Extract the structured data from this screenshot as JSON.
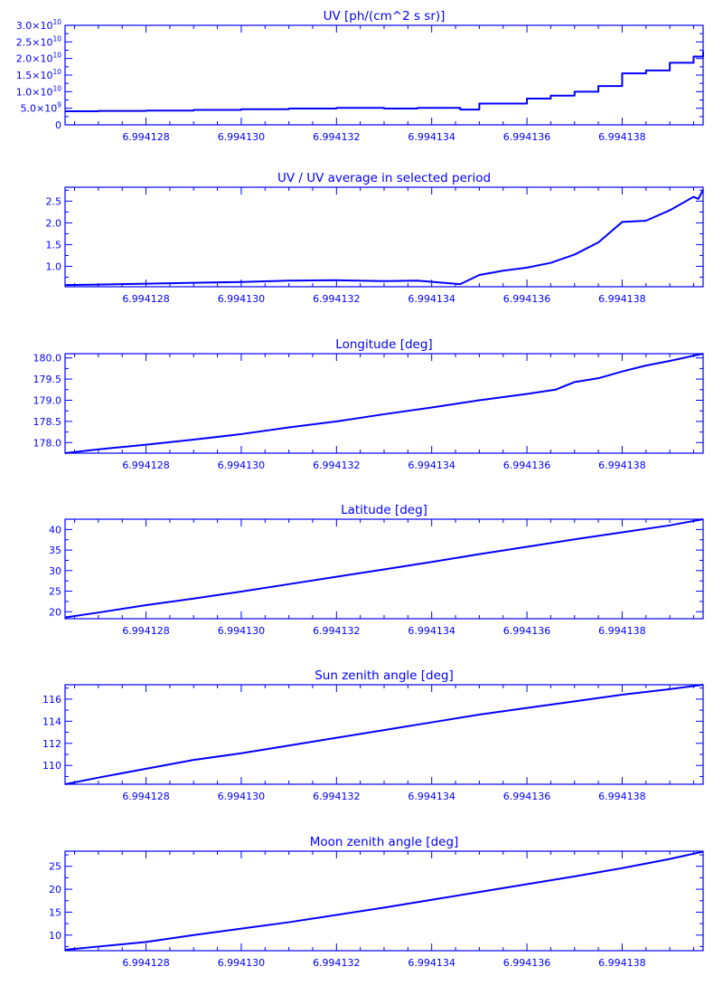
{
  "colors": {
    "foreground": "#0000ff",
    "background": "#ffffff"
  },
  "x_tick_labels": [
    "6.994128",
    "6.994130",
    "6.994132",
    "6.994134",
    "6.994136",
    "6.994138"
  ],
  "chart_data": [
    {
      "type": "line",
      "title": "UV [ph/(cm^2 s sr)]",
      "x": [
        6.9941263,
        6.994127,
        6.994128,
        6.994129,
        6.99413,
        6.994131,
        6.994132,
        6.994133,
        6.9941337,
        6.9941346,
        6.994135,
        6.994136,
        6.9941365,
        6.994137,
        6.9941375,
        6.994138,
        6.9941385,
        6.994139,
        6.9941395,
        6.9941397
      ],
      "values": [
        4100000000.0,
        4200000000.0,
        4300000000.0,
        4500000000.0,
        4700000000.0,
        4900000000.0,
        5100000000.0,
        4900000000.0,
        5100000000.0,
        4600000000.0,
        6400000000.0,
        7900000000.0,
        8800000000.0,
        10000000000.0,
        11700000000.0,
        15500000000.0,
        16400000000.0,
        18700000000.0,
        20600000000.0,
        22200000000.0
      ],
      "ylim": [
        0,
        30000000000.0
      ],
      "y_ticks": [
        0,
        5000000000.0,
        10000000000.0,
        15000000000.0,
        20000000000.0,
        25000000000.0,
        30000000000.0
      ],
      "y_tick_labels": [
        {
          "mant": "0",
          "exp": ""
        },
        {
          "mant": "5.0×10",
          "exp": "9"
        },
        {
          "mant": "1.0×10",
          "exp": "10"
        },
        {
          "mant": "1.5×10",
          "exp": "10"
        },
        {
          "mant": "2.0×10",
          "exp": "10"
        },
        {
          "mant": "2.5×10",
          "exp": "10"
        },
        {
          "mant": "3.0×10",
          "exp": "10"
        }
      ],
      "step": true
    },
    {
      "type": "line",
      "title": "UV / UV average in selected period",
      "x": [
        6.9941263,
        6.994127,
        6.994128,
        6.994129,
        6.99413,
        6.994131,
        6.994132,
        6.994133,
        6.9941337,
        6.9941346,
        6.994135,
        6.9941355,
        6.994136,
        6.9941365,
        6.994137,
        6.9941375,
        6.994138,
        6.9941385,
        6.994139,
        6.9941395,
        6.9941396,
        6.9941397
      ],
      "values": [
        0.57,
        0.58,
        0.6,
        0.62,
        0.64,
        0.67,
        0.68,
        0.66,
        0.67,
        0.59,
        0.8,
        0.9,
        0.97,
        1.08,
        1.27,
        1.55,
        2.02,
        2.05,
        2.29,
        2.6,
        2.55,
        2.76
      ],
      "ylim": [
        0.53,
        2.82
      ],
      "y_ticks": [
        1.0,
        1.5,
        2.0,
        2.5
      ],
      "y_tick_labels": [
        {
          "mant": "1.0",
          "exp": ""
        },
        {
          "mant": "1.5",
          "exp": ""
        },
        {
          "mant": "2.0",
          "exp": ""
        },
        {
          "mant": "2.5",
          "exp": ""
        }
      ],
      "step": false
    },
    {
      "type": "line",
      "title": "Longitude [deg]",
      "x": [
        6.9941263,
        6.994127,
        6.994128,
        6.994129,
        6.99413,
        6.994131,
        6.994132,
        6.994133,
        6.994134,
        6.994135,
        6.994136,
        6.9941366,
        6.994137,
        6.9941375,
        6.994138,
        6.9941385,
        6.994139,
        6.9941397
      ],
      "values": [
        177.75,
        177.84,
        177.95,
        178.07,
        178.2,
        178.36,
        178.5,
        178.67,
        178.83,
        179.0,
        179.15,
        179.25,
        179.43,
        179.52,
        179.68,
        179.82,
        179.93,
        180.1
      ],
      "ylim": [
        177.75,
        180.1
      ],
      "y_ticks": [
        178.0,
        178.5,
        179.0,
        179.5,
        180.0
      ],
      "y_tick_labels": [
        {
          "mant": "178.0",
          "exp": ""
        },
        {
          "mant": "178.5",
          "exp": ""
        },
        {
          "mant": "179.0",
          "exp": ""
        },
        {
          "mant": "179.5",
          "exp": ""
        },
        {
          "mant": "180.0",
          "exp": ""
        }
      ],
      "step": false
    },
    {
      "type": "line",
      "title": "Latitude [deg]",
      "x": [
        6.9941263,
        6.994127,
        6.994128,
        6.994129,
        6.99413,
        6.994131,
        6.994132,
        6.994133,
        6.994134,
        6.994135,
        6.994136,
        6.994137,
        6.994138,
        6.994139,
        6.9941397
      ],
      "values": [
        18.6,
        19.8,
        21.6,
        23.2,
        24.9,
        26.7,
        28.5,
        30.3,
        32.1,
        34.0,
        35.8,
        37.6,
        39.3,
        41.0,
        42.5
      ],
      "ylim": [
        18.3,
        42.5
      ],
      "y_ticks": [
        20,
        25,
        30,
        35,
        40
      ],
      "y_tick_labels": [
        {
          "mant": "20",
          "exp": ""
        },
        {
          "mant": "25",
          "exp": ""
        },
        {
          "mant": "30",
          "exp": ""
        },
        {
          "mant": "35",
          "exp": ""
        },
        {
          "mant": "40",
          "exp": ""
        }
      ],
      "step": false
    },
    {
      "type": "line",
      "title": "Sun zenith angle [deg]",
      "x": [
        6.9941263,
        6.994127,
        6.994128,
        6.994129,
        6.99413,
        6.994131,
        6.994132,
        6.994133,
        6.994134,
        6.994135,
        6.994136,
        6.994137,
        6.994138,
        6.994139,
        6.9941397
      ],
      "values": [
        108.3,
        108.9,
        109.7,
        110.5,
        111.1,
        111.8,
        112.5,
        113.2,
        113.9,
        114.6,
        115.2,
        115.8,
        116.4,
        116.9,
        117.3
      ],
      "ylim": [
        108.3,
        117.3
      ],
      "y_ticks": [
        110,
        112,
        114,
        116
      ],
      "y_tick_labels": [
        {
          "mant": "110",
          "exp": ""
        },
        {
          "mant": "112",
          "exp": ""
        },
        {
          "mant": "114",
          "exp": ""
        },
        {
          "mant": "116",
          "exp": ""
        }
      ],
      "step": false
    },
    {
      "type": "line",
      "title": "Moon zenith angle [deg]",
      "x": [
        6.9941263,
        6.994127,
        6.994128,
        6.994129,
        6.99413,
        6.994131,
        6.994132,
        6.994133,
        6.994134,
        6.994135,
        6.994136,
        6.994137,
        6.994138,
        6.994139,
        6.9941397
      ],
      "values": [
        6.8,
        7.5,
        8.5,
        10.0,
        11.4,
        12.8,
        14.4,
        16.0,
        17.7,
        19.4,
        21.1,
        22.8,
        24.6,
        26.6,
        28.2
      ],
      "ylim": [
        6.6,
        28.3
      ],
      "y_ticks": [
        10,
        15,
        20,
        25
      ],
      "y_tick_labels": [
        {
          "mant": "10",
          "exp": ""
        },
        {
          "mant": "15",
          "exp": ""
        },
        {
          "mant": "20",
          "exp": ""
        },
        {
          "mant": "25",
          "exp": ""
        }
      ],
      "step": false
    }
  ]
}
